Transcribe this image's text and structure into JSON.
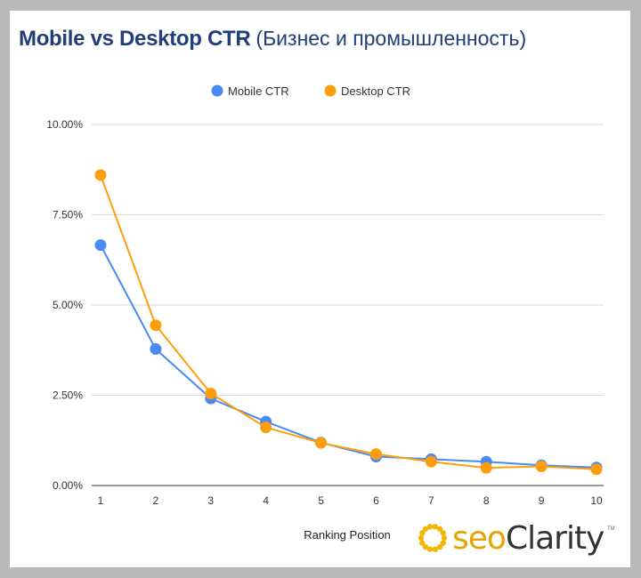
{
  "chart_data": {
    "type": "line",
    "title": "Mobile vs Desktop CTR",
    "subtitle": "(Бизнес и промышленность)",
    "xlabel": "Ranking Position",
    "ylabel": "",
    "x": [
      1,
      2,
      3,
      4,
      5,
      6,
      7,
      8,
      9,
      10
    ],
    "ylim": [
      0,
      0.1
    ],
    "yticks": [
      "0.00%",
      "2.50%",
      "5.00%",
      "7.50%",
      "10.00%"
    ],
    "ytick_values": [
      0,
      0.025,
      0.05,
      0.075,
      0.1
    ],
    "grid": true,
    "legend_position": "top",
    "series": [
      {
        "name": "Mobile CTR",
        "color": "#4a8af4",
        "values": [
          0.0666,
          0.0378,
          0.0241,
          0.0177,
          0.0119,
          0.008,
          0.0073,
          0.0066,
          0.0056,
          0.005
        ]
      },
      {
        "name": "Desktop CTR",
        "color": "#ff9e0d",
        "values": [
          0.086,
          0.0444,
          0.0255,
          0.0161,
          0.0118,
          0.0087,
          0.0066,
          0.0049,
          0.0053,
          0.0045
        ]
      }
    ]
  },
  "logo": {
    "text_seo": "seo",
    "text_clarity": "Clarity",
    "mark": "TM",
    "color_seo": "#e8a300",
    "color_clarity": "#333333"
  }
}
